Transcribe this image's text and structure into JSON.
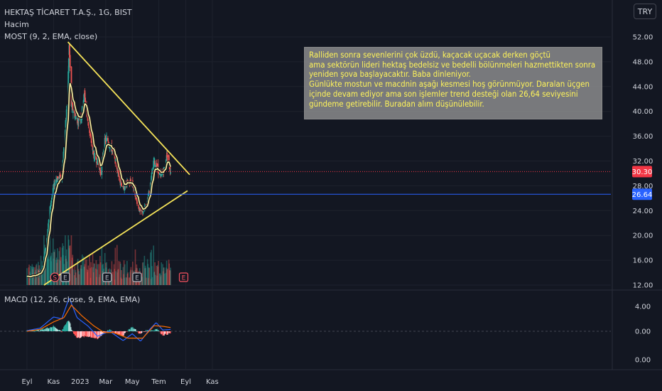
{
  "header": {
    "symbol_line": "HEKTAŞ TİCARET T.A.Ş., 1G, BIST",
    "volume_label": "Hacim",
    "indicator_label": "MOST (9, 2, EMA, close)",
    "currency_button": "TRY",
    "macd_label": "MACD (12, 26, close, 9, EMA, EMA)"
  },
  "note_text": "Ralliden sonra sevenlerini çok üzdü, kaçacak uçacak derken göçtü\nama sektörün lideri hektaş bedelsiz ve bedelli bölünmeleri hazmettikten sonra yeniden şova başlayacaktır. Baba dinleniyor.\nGünlükte mostun ve macdnin aşağı kesmesi hoş görünmüyor. Daralan üçgen içinde devam ediyor ama son işlemler trend desteği olan 26,64 seviyesini gündeme getirebilir. Buradan alım düşünülebilir.",
  "colors": {
    "background": "#131722",
    "up": "#26a69a",
    "down": "#ef5350",
    "trendline": "#f7e55a",
    "most_line": "#fff3a6",
    "support_line": "#2962ff",
    "macd_line": "#2962ff",
    "signal_line": "#ff6d00",
    "last_price_tag": "#f23645",
    "support_tag": "#2962ff"
  },
  "chart_data": {
    "type": "candlestick",
    "symbol": "HEKTAŞ TİCARET T.A.Ş.",
    "interval": "1G",
    "exchange": "BIST",
    "currency": "TRY",
    "price_axis": {
      "ticks": [
        "52.00",
        "48.00",
        "44.00",
        "40.00",
        "36.00",
        "32.00",
        "28.00",
        "24.00",
        "20.00",
        "16.00",
        "12.00"
      ],
      "range": [
        12,
        53
      ]
    },
    "time_axis": {
      "ticks": [
        "Eyl",
        "Kas",
        "2023",
        "Mar",
        "May",
        "Tem",
        "Eyl",
        "Kas"
      ]
    },
    "last_price": "30.30",
    "support_level": "26.64",
    "price_path": [
      [
        "2022-09-01",
        13.4
      ],
      [
        "2022-09-20",
        13.6
      ],
      [
        "2022-10-05",
        14.2
      ],
      [
        "2022-10-15",
        18.5
      ],
      [
        "2022-10-25",
        25.0
      ],
      [
        "2022-11-05",
        29.0
      ],
      [
        "2022-11-20",
        29.5
      ],
      [
        "2022-11-28",
        37.0
      ],
      [
        "2022-12-03",
        42.0
      ],
      [
        "2022-12-07",
        50.5
      ],
      [
        "2022-12-12",
        41.0
      ],
      [
        "2022-12-25",
        38.5
      ],
      [
        "2023-01-05",
        39.5
      ],
      [
        "2023-01-10",
        43.0
      ],
      [
        "2023-01-20",
        38.0
      ],
      [
        "2023-02-01",
        33.0
      ],
      [
        "2023-02-10",
        32.0
      ],
      [
        "2023-02-18",
        30.0
      ],
      [
        "2023-02-25",
        35.0
      ],
      [
        "2023-03-05",
        35.5
      ],
      [
        "2023-03-20",
        33.0
      ],
      [
        "2023-04-01",
        29.5
      ],
      [
        "2023-04-10",
        27.5
      ],
      [
        "2023-04-20",
        28.5
      ],
      [
        "2023-05-01",
        28.5
      ],
      [
        "2023-05-10",
        26.0
      ],
      [
        "2023-05-20",
        23.5
      ],
      [
        "2023-06-01",
        24.5
      ],
      [
        "2023-06-10",
        27.5
      ],
      [
        "2023-06-20",
        32.0
      ],
      [
        "2023-06-27",
        31.0
      ],
      [
        "2023-07-05",
        29.5
      ],
      [
        "2023-07-15",
        31.0
      ],
      [
        "2023-07-20",
        33.0
      ],
      [
        "2023-07-25",
        31.5
      ],
      [
        "2023-07-28",
        30.3
      ]
    ],
    "trendlines": [
      {
        "role": "resistance",
        "from": [
          "2022-12-04",
          51.2
        ],
        "to": [
          "2023-09-10",
          29.8
        ]
      },
      {
        "role": "support",
        "from": [
          "2022-10-10",
          12.0
        ],
        "to": [
          "2023-09-05",
          27.2
        ]
      }
    ],
    "event_markers": [
      {
        "date": "2022-11-04",
        "label": "S"
      },
      {
        "date": "2022-11-28",
        "label": "E"
      },
      {
        "date": "2023-03-04",
        "label": "E"
      },
      {
        "date": "2023-05-12",
        "label": "E"
      },
      {
        "date": "2023-08-27",
        "label": "E"
      }
    ],
    "macd": {
      "ticks": [
        "4.00",
        "0.00",
        "0.00"
      ],
      "range": [
        -4,
        6
      ],
      "macd_path": [
        [
          "2022-09-01",
          0.1
        ],
        [
          "2022-10-01",
          0.5
        ],
        [
          "2022-11-01",
          2.3
        ],
        [
          "2022-11-20",
          2.0
        ],
        [
          "2022-12-07",
          5.4
        ],
        [
          "2022-12-25",
          2.2
        ],
        [
          "2023-01-20",
          0.8
        ],
        [
          "2023-02-10",
          -0.8
        ],
        [
          "2023-03-10",
          0.0
        ],
        [
          "2023-04-10",
          -1.5
        ],
        [
          "2023-05-01",
          -0.4
        ],
        [
          "2023-05-20",
          -1.6
        ],
        [
          "2023-06-10",
          0.3
        ],
        [
          "2023-06-25",
          1.4
        ],
        [
          "2023-07-10",
          0.2
        ],
        [
          "2023-07-28",
          0.3
        ]
      ],
      "signal_path": [
        [
          "2022-09-01",
          0.0
        ],
        [
          "2022-10-01",
          0.3
        ],
        [
          "2022-11-01",
          1.5
        ],
        [
          "2022-11-25",
          2.2
        ],
        [
          "2022-12-12",
          4.2
        ],
        [
          "2023-01-05",
          2.5
        ],
        [
          "2023-02-01",
          0.9
        ],
        [
          "2023-02-25",
          -0.2
        ],
        [
          "2023-03-20",
          -0.2
        ],
        [
          "2023-04-20",
          -1.1
        ],
        [
          "2023-05-25",
          -1.1
        ],
        [
          "2023-06-20",
          0.9
        ],
        [
          "2023-07-10",
          0.8
        ],
        [
          "2023-07-28",
          0.6
        ]
      ]
    }
  }
}
